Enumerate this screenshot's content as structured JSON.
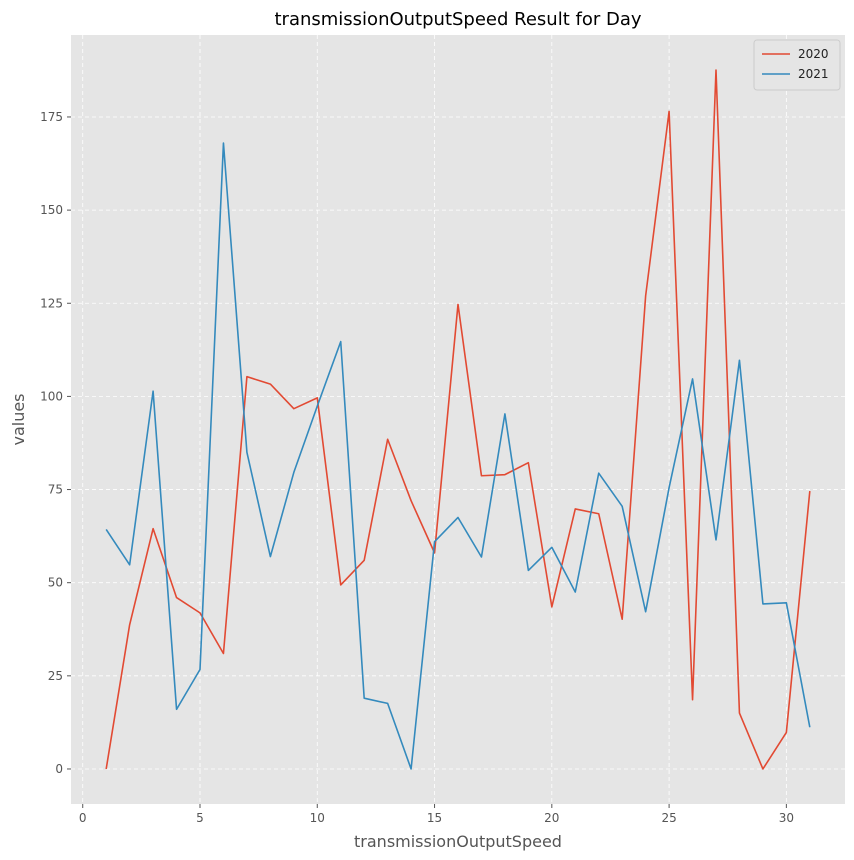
{
  "chart_data": {
    "type": "line",
    "title": "transmissionOutputSpeed Result for Day",
    "xlabel": "transmissionOutputSpeed",
    "ylabel": "values",
    "xlim": [
      -0.5,
      32.5
    ],
    "ylim": [
      -9.4,
      197
    ],
    "x_ticks": [
      0,
      5,
      10,
      15,
      20,
      25,
      30
    ],
    "y_ticks": [
      0,
      25,
      50,
      75,
      100,
      125,
      150,
      175
    ],
    "grid": true,
    "legend_position": "top-right",
    "x": [
      1,
      2,
      3,
      4,
      5,
      6,
      7,
      8,
      9,
      10,
      11,
      12,
      13,
      14,
      15,
      16,
      17,
      18,
      19,
      20,
      21,
      22,
      23,
      24,
      25,
      26,
      27,
      28,
      29,
      30,
      31
    ],
    "series": [
      {
        "name": "2020",
        "color": "#E24A33",
        "values": [
          0,
          38.7,
          64.5,
          46,
          41.9,
          31,
          105.3,
          103.3,
          96.7,
          99.6,
          49.4,
          56,
          88.5,
          72,
          58,
          124.7,
          78.7,
          79,
          82.2,
          43.5,
          69.8,
          68.5,
          40.2,
          127,
          176.5,
          18.6,
          187.6,
          15,
          0,
          9.8,
          74.6
        ]
      },
      {
        "name": "2021",
        "color": "#348ABD",
        "values": [
          64.3,
          54.8,
          101.4,
          16,
          26.7,
          168,
          85,
          57,
          79.6,
          97.4,
          114.7,
          19,
          17.6,
          0,
          61,
          67.5,
          56.9,
          95.3,
          53.3,
          59.5,
          47.5,
          79.4,
          70.5,
          42.2,
          75.5,
          104.7,
          61.5,
          109.7,
          44.3,
          44.6,
          11.2
        ]
      }
    ]
  }
}
